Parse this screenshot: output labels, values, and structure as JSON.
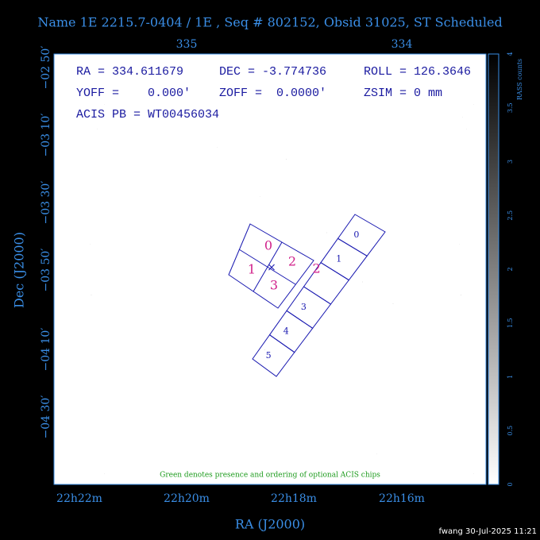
{
  "title": "Name 1E 2215.7-0404 / 1E , Seq # 802152, Obsid 31025, ST Scheduled",
  "pointing": {
    "lines": [
      [
        "RA = 334.611679",
        "DEC = -3.774736",
        "ROLL = 126.3646"
      ],
      [
        "YOFF =    0.000'",
        "ZOFF =  0.0000'",
        "ZSIM = 0 mm"
      ],
      [
        "ACIS PB = WT00456034"
      ]
    ]
  },
  "axes": {
    "top_ticks": [
      "335",
      "334"
    ],
    "left_ticks": [
      "−02 50′",
      "−03 10′",
      "−03 30′",
      "−03 50′",
      "−04 10′",
      "−04 30′"
    ],
    "bottom_ticks": [
      "22h22m",
      "22h20m",
      "22h18m",
      "22h16m"
    ],
    "x_label": "RA (J2000)",
    "y_label": "Dec (J2000)"
  },
  "colorbar": {
    "label": "RASS counts",
    "ticks": [
      "0",
      "0.5",
      "1",
      "1.5",
      "2",
      "2.5",
      "3",
      "3.5",
      "4"
    ]
  },
  "chips": {
    "acis_i": [
      "0",
      "1",
      "2",
      "3"
    ],
    "acis_s": [
      "0",
      "1",
      "2",
      "3",
      "4",
      "5"
    ]
  },
  "note": "Green denotes presence and ordering of optional ACIS chips",
  "footer": "fwang 30-Jul-2025 11:21"
}
